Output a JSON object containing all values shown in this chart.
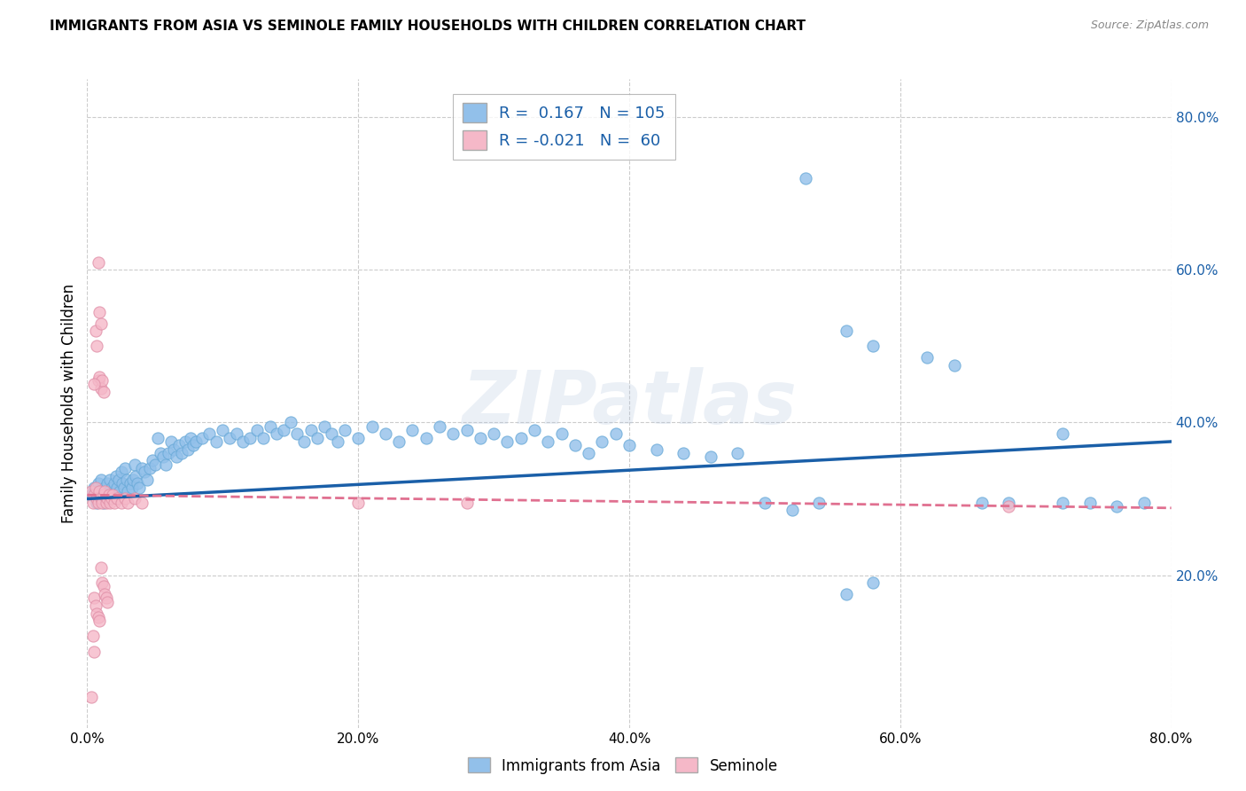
{
  "title": "IMMIGRANTS FROM ASIA VS SEMINOLE FAMILY HOUSEHOLDS WITH CHILDREN CORRELATION CHART",
  "source": "Source: ZipAtlas.com",
  "ylabel": "Family Households with Children",
  "xlim": [
    0.0,
    0.8
  ],
  "ylim": [
    0.0,
    0.85
  ],
  "blue_color": "#92c0ea",
  "pink_color": "#f5b8c8",
  "blue_line_color": "#1a5fa8",
  "pink_line_color": "#e07090",
  "grid_color": "#cccccc",
  "watermark": "ZIPatlas",
  "blue_scatter": [
    [
      0.003,
      0.305
    ],
    [
      0.005,
      0.315
    ],
    [
      0.006,
      0.31
    ],
    [
      0.007,
      0.295
    ],
    [
      0.008,
      0.32
    ],
    [
      0.009,
      0.3
    ],
    [
      0.01,
      0.325
    ],
    [
      0.011,
      0.31
    ],
    [
      0.012,
      0.295
    ],
    [
      0.013,
      0.315
    ],
    [
      0.014,
      0.3
    ],
    [
      0.015,
      0.32
    ],
    [
      0.016,
      0.31
    ],
    [
      0.017,
      0.325
    ],
    [
      0.018,
      0.315
    ],
    [
      0.019,
      0.305
    ],
    [
      0.02,
      0.32
    ],
    [
      0.021,
      0.33
    ],
    [
      0.022,
      0.315
    ],
    [
      0.023,
      0.325
    ],
    [
      0.024,
      0.31
    ],
    [
      0.025,
      0.335
    ],
    [
      0.026,
      0.32
    ],
    [
      0.027,
      0.315
    ],
    [
      0.028,
      0.34
    ],
    [
      0.029,
      0.325
    ],
    [
      0.03,
      0.31
    ],
    [
      0.032,
      0.32
    ],
    [
      0.033,
      0.315
    ],
    [
      0.034,
      0.325
    ],
    [
      0.035,
      0.345
    ],
    [
      0.036,
      0.33
    ],
    [
      0.037,
      0.32
    ],
    [
      0.038,
      0.315
    ],
    [
      0.04,
      0.34
    ],
    [
      0.042,
      0.335
    ],
    [
      0.044,
      0.325
    ],
    [
      0.046,
      0.34
    ],
    [
      0.048,
      0.35
    ],
    [
      0.05,
      0.345
    ],
    [
      0.052,
      0.38
    ],
    [
      0.054,
      0.36
    ],
    [
      0.056,
      0.355
    ],
    [
      0.058,
      0.345
    ],
    [
      0.06,
      0.36
    ],
    [
      0.062,
      0.375
    ],
    [
      0.064,
      0.365
    ],
    [
      0.066,
      0.355
    ],
    [
      0.068,
      0.37
    ],
    [
      0.07,
      0.36
    ],
    [
      0.072,
      0.375
    ],
    [
      0.074,
      0.365
    ],
    [
      0.076,
      0.38
    ],
    [
      0.078,
      0.37
    ],
    [
      0.08,
      0.375
    ],
    [
      0.085,
      0.38
    ],
    [
      0.09,
      0.385
    ],
    [
      0.095,
      0.375
    ],
    [
      0.1,
      0.39
    ],
    [
      0.105,
      0.38
    ],
    [
      0.11,
      0.385
    ],
    [
      0.115,
      0.375
    ],
    [
      0.12,
      0.38
    ],
    [
      0.125,
      0.39
    ],
    [
      0.13,
      0.38
    ],
    [
      0.135,
      0.395
    ],
    [
      0.14,
      0.385
    ],
    [
      0.145,
      0.39
    ],
    [
      0.15,
      0.4
    ],
    [
      0.155,
      0.385
    ],
    [
      0.16,
      0.375
    ],
    [
      0.165,
      0.39
    ],
    [
      0.17,
      0.38
    ],
    [
      0.175,
      0.395
    ],
    [
      0.18,
      0.385
    ],
    [
      0.185,
      0.375
    ],
    [
      0.19,
      0.39
    ],
    [
      0.2,
      0.38
    ],
    [
      0.21,
      0.395
    ],
    [
      0.22,
      0.385
    ],
    [
      0.23,
      0.375
    ],
    [
      0.24,
      0.39
    ],
    [
      0.25,
      0.38
    ],
    [
      0.26,
      0.395
    ],
    [
      0.27,
      0.385
    ],
    [
      0.28,
      0.39
    ],
    [
      0.29,
      0.38
    ],
    [
      0.3,
      0.385
    ],
    [
      0.31,
      0.375
    ],
    [
      0.32,
      0.38
    ],
    [
      0.33,
      0.39
    ],
    [
      0.34,
      0.375
    ],
    [
      0.35,
      0.385
    ],
    [
      0.36,
      0.37
    ],
    [
      0.37,
      0.36
    ],
    [
      0.38,
      0.375
    ],
    [
      0.39,
      0.385
    ],
    [
      0.4,
      0.37
    ],
    [
      0.42,
      0.365
    ],
    [
      0.44,
      0.36
    ],
    [
      0.46,
      0.355
    ],
    [
      0.48,
      0.36
    ],
    [
      0.5,
      0.295
    ],
    [
      0.52,
      0.285
    ],
    [
      0.54,
      0.295
    ],
    [
      0.56,
      0.175
    ],
    [
      0.58,
      0.19
    ],
    [
      0.53,
      0.72
    ],
    [
      0.56,
      0.52
    ],
    [
      0.58,
      0.5
    ],
    [
      0.62,
      0.485
    ],
    [
      0.64,
      0.475
    ],
    [
      0.66,
      0.295
    ],
    [
      0.68,
      0.295
    ],
    [
      0.72,
      0.295
    ],
    [
      0.74,
      0.295
    ],
    [
      0.76,
      0.29
    ],
    [
      0.72,
      0.385
    ],
    [
      0.78,
      0.295
    ]
  ],
  "pink_scatter": [
    [
      0.003,
      0.31
    ],
    [
      0.004,
      0.295
    ],
    [
      0.005,
      0.305
    ],
    [
      0.006,
      0.315
    ],
    [
      0.007,
      0.3
    ],
    [
      0.008,
      0.295
    ],
    [
      0.009,
      0.31
    ],
    [
      0.01,
      0.3
    ],
    [
      0.011,
      0.295
    ],
    [
      0.012,
      0.305
    ],
    [
      0.013,
      0.31
    ],
    [
      0.014,
      0.295
    ],
    [
      0.015,
      0.3
    ],
    [
      0.016,
      0.305
    ],
    [
      0.017,
      0.295
    ],
    [
      0.018,
      0.3
    ],
    [
      0.019,
      0.305
    ],
    [
      0.02,
      0.295
    ],
    [
      0.022,
      0.3
    ],
    [
      0.025,
      0.295
    ],
    [
      0.028,
      0.3
    ],
    [
      0.03,
      0.295
    ],
    [
      0.035,
      0.3
    ],
    [
      0.04,
      0.295
    ],
    [
      0.006,
      0.52
    ],
    [
      0.007,
      0.5
    ],
    [
      0.008,
      0.455
    ],
    [
      0.009,
      0.46
    ],
    [
      0.01,
      0.445
    ],
    [
      0.011,
      0.455
    ],
    [
      0.012,
      0.44
    ],
    [
      0.008,
      0.61
    ],
    [
      0.009,
      0.545
    ],
    [
      0.01,
      0.53
    ],
    [
      0.005,
      0.45
    ],
    [
      0.005,
      0.17
    ],
    [
      0.006,
      0.16
    ],
    [
      0.007,
      0.15
    ],
    [
      0.008,
      0.145
    ],
    [
      0.009,
      0.14
    ],
    [
      0.01,
      0.21
    ],
    [
      0.011,
      0.19
    ],
    [
      0.012,
      0.185
    ],
    [
      0.013,
      0.175
    ],
    [
      0.014,
      0.17
    ],
    [
      0.015,
      0.165
    ],
    [
      0.004,
      0.12
    ],
    [
      0.005,
      0.1
    ],
    [
      0.003,
      0.04
    ],
    [
      0.2,
      0.295
    ],
    [
      0.28,
      0.295
    ],
    [
      0.68,
      0.29
    ]
  ],
  "blue_trend_x": [
    0.0,
    0.8
  ],
  "blue_trend_y": [
    0.3,
    0.375
  ],
  "pink_trend_x": [
    0.0,
    0.8
  ],
  "pink_trend_y": [
    0.305,
    0.288
  ],
  "legend_items": [
    "Immigrants from Asia",
    "Seminole"
  ],
  "yticks": [
    0.2,
    0.4,
    0.6,
    0.8
  ],
  "ytick_labels": [
    "20.0%",
    "40.0%",
    "60.0%",
    "80.0%"
  ],
  "xticks": [
    0.0,
    0.2,
    0.4,
    0.6,
    0.8
  ],
  "xtick_labels": [
    "0.0%",
    "20.0%",
    "40.0%",
    "60.0%",
    "80.0%"
  ]
}
